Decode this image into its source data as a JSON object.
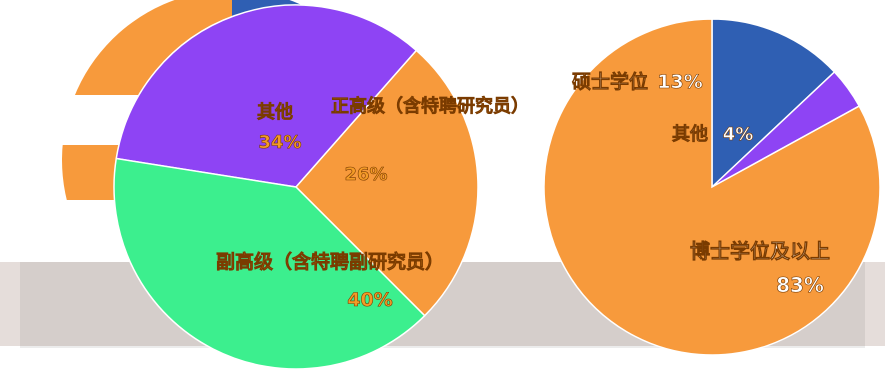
{
  "chart_data": [
    {
      "type": "pie",
      "slices": [
        {
          "label": "其他",
          "pct_label": "34%",
          "value": 34,
          "color": "#8e44f4"
        },
        {
          "label": "正高级（含特聘研究员）",
          "pct_label": "26%",
          "value": 26,
          "color": "#f79a3c"
        },
        {
          "label": "副高级（含特聘副研究员）",
          "pct_label": "40%",
          "value": 40,
          "color": "#3cef8e"
        }
      ],
      "label_color": "#f39b27"
    },
    {
      "type": "pie",
      "slices": [
        {
          "label": "硕士学位",
          "pct_label": "13%",
          "value": 13,
          "color": "#2f5fb3"
        },
        {
          "label": "其他",
          "pct_label": "4%",
          "value": 4,
          "color": "#8e44f4"
        },
        {
          "label": "博士学位及以上",
          "pct_label": "83%",
          "value": 83,
          "color": "#f79a3c"
        }
      ],
      "label_color": "#ffffff"
    }
  ],
  "background_pie": {
    "slice_colors": [
      "#2f5fb3",
      "#5e9a3a",
      "#f79a3c"
    ]
  }
}
